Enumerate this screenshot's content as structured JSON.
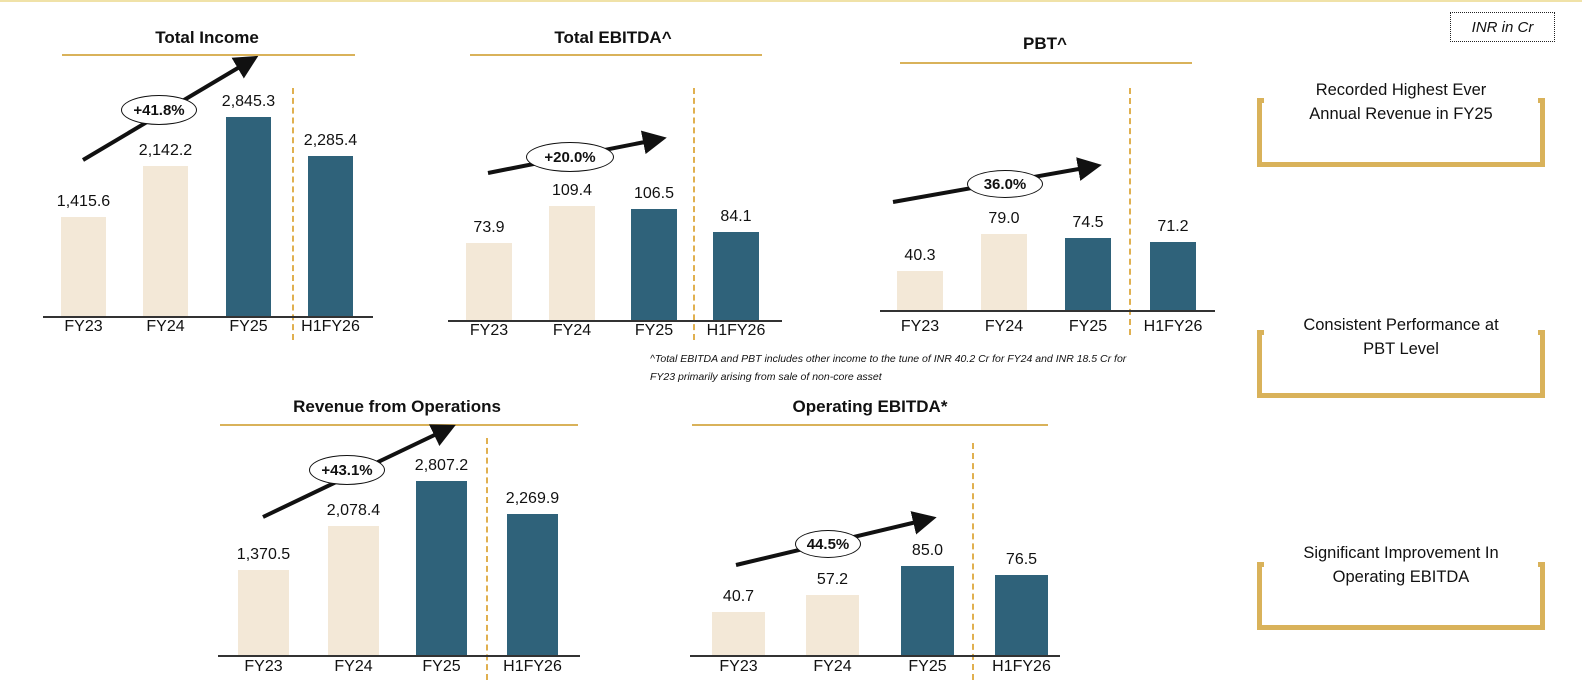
{
  "unit_label": "INR in Cr",
  "footnote": [
    "^Total EBITDA and PBT includes other income to the tune of INR 40.2 Cr for FY24 and INR 18.5 Cr for",
    "FY23 primarily arising from sale of non-core asset"
  ],
  "callouts": [
    {
      "lines": [
        "Recorded Highest Ever",
        "Annual Revenue in FY25"
      ]
    },
    {
      "lines": [
        "Consistent Performance at",
        "PBT Level"
      ]
    },
    {
      "lines": [
        "Significant Improvement In",
        "Operating EBITDA"
      ]
    }
  ],
  "colors": {
    "historic": "#f3e8d7",
    "recent": "#2f627a",
    "accent": "#d9b25a"
  },
  "chart_data": [
    {
      "type": "bar",
      "title": "Total Income",
      "categories": [
        "FY23",
        "FY24",
        "FY25",
        "H1FY26"
      ],
      "values": [
        1415.6,
        2142.2,
        2845.3,
        2285.4
      ],
      "labels": [
        "1,415.6",
        "2,142.2",
        "2,845.3",
        "2,285.4"
      ],
      "growth": "+41.8%"
    },
    {
      "type": "bar",
      "title": "Total EBITDA^",
      "categories": [
        "FY23",
        "FY24",
        "FY25",
        "H1FY26"
      ],
      "values": [
        73.9,
        109.4,
        106.5,
        84.1
      ],
      "labels": [
        "73.9",
        "109.4",
        "106.5",
        "84.1"
      ],
      "growth": "+20.0%"
    },
    {
      "type": "bar",
      "title": "PBT^",
      "categories": [
        "FY23",
        "FY24",
        "FY25",
        "H1FY26"
      ],
      "values": [
        40.3,
        79.0,
        74.5,
        71.2
      ],
      "labels": [
        "40.3",
        "79.0",
        "74.5",
        "71.2"
      ],
      "growth": "36.0%"
    },
    {
      "type": "bar",
      "title": "Revenue from Operations",
      "categories": [
        "FY23",
        "FY24",
        "FY25",
        "H1FY26"
      ],
      "values": [
        1370.5,
        2078.4,
        2807.2,
        2269.9
      ],
      "labels": [
        "1,370.5",
        "2,078.4",
        "2,807.2",
        "2,269.9"
      ],
      "growth": "+43.1%"
    },
    {
      "type": "bar",
      "title": "Operating EBITDA*",
      "categories": [
        "FY23",
        "FY24",
        "FY25",
        "H1FY26"
      ],
      "values": [
        40.7,
        57.2,
        85.0,
        76.5
      ],
      "labels": [
        "40.7",
        "57.2",
        "85.0",
        "76.5"
      ],
      "growth": "44.5%"
    }
  ]
}
